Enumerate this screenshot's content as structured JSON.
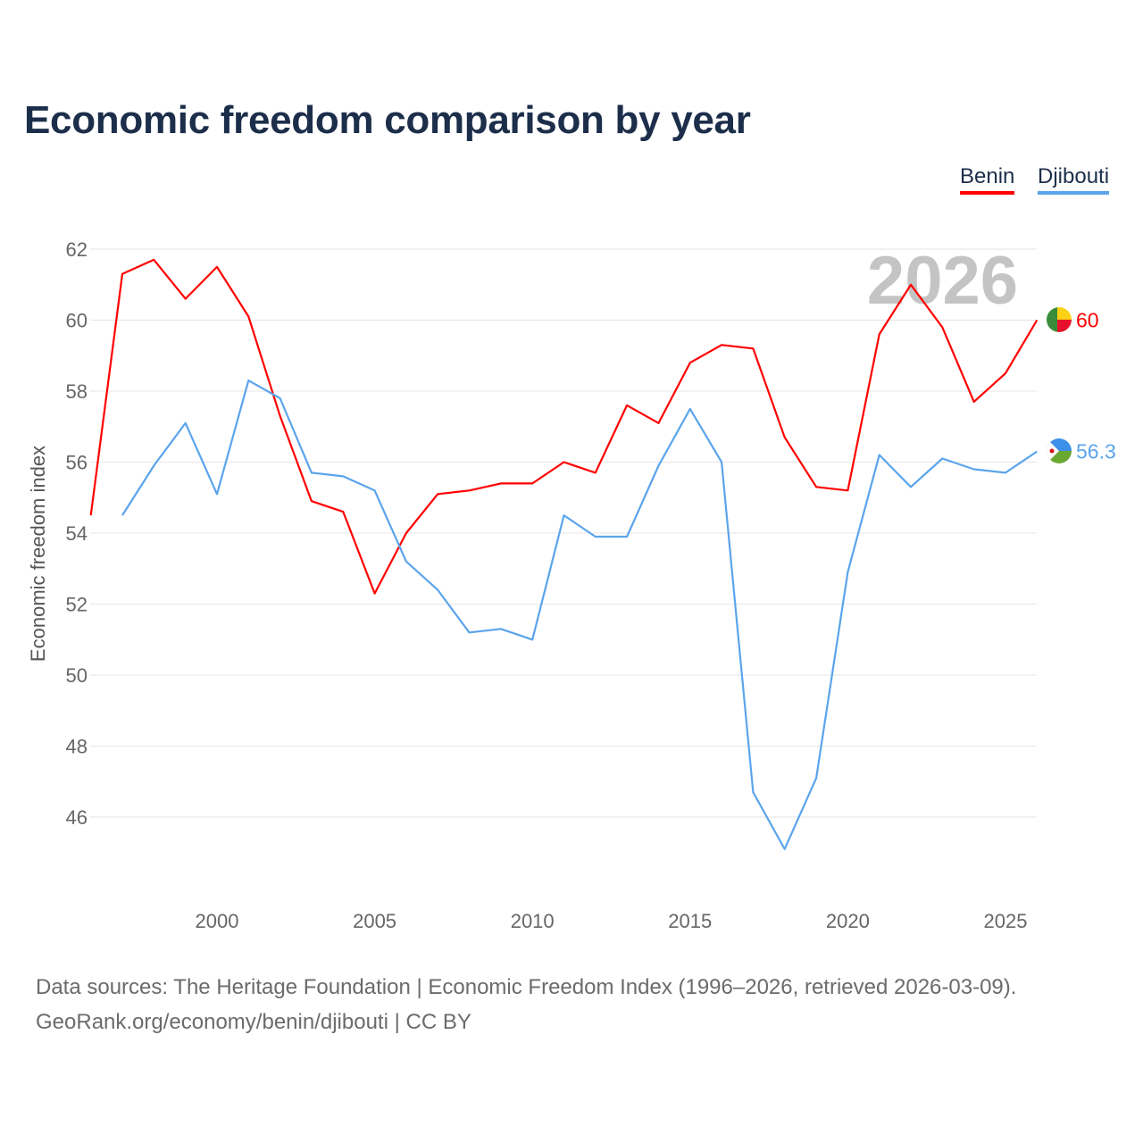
{
  "title": "Economic freedom comparison by year",
  "legend": [
    {
      "label": "Benin",
      "color": "#ff0000"
    },
    {
      "label": "Djibouti",
      "color": "#5ba4ec"
    }
  ],
  "footer": {
    "line1": "Data sources: The Heritage Foundation | Economic Freedom Index (1996–2026, retrieved 2026-03-09).",
    "line2": "GeoRank.org/economy/benin/djibouti | CC BY"
  },
  "chart_data": {
    "type": "line",
    "title": "Economic freedom comparison by year",
    "ylabel": "Economic freedom index",
    "xlabel": "",
    "xlim": [
      1996,
      2026
    ],
    "ylim": [
      44,
      63
    ],
    "xticks": [
      2000,
      2005,
      2010,
      2015,
      2020,
      2025
    ],
    "yticks": [
      46,
      48,
      50,
      52,
      54,
      56,
      58,
      60,
      62
    ],
    "grid": true,
    "legend_position": "top-right",
    "watermark_year": "2026",
    "series": [
      {
        "name": "Benin",
        "color": "#ff0000",
        "end_label": "60",
        "x": [
          1996,
          1997,
          1998,
          1999,
          2000,
          2001,
          2002,
          2003,
          2004,
          2005,
          2006,
          2007,
          2008,
          2009,
          2010,
          2011,
          2012,
          2013,
          2014,
          2015,
          2016,
          2017,
          2018,
          2019,
          2020,
          2021,
          2022,
          2023,
          2024,
          2025,
          2026
        ],
        "y": [
          54.5,
          61.3,
          61.7,
          60.6,
          61.5,
          60.1,
          57.3,
          54.9,
          54.6,
          52.3,
          54.0,
          55.1,
          55.2,
          55.4,
          55.4,
          56.0,
          55.7,
          57.6,
          57.1,
          58.8,
          59.3,
          59.2,
          56.7,
          55.3,
          55.2,
          59.6,
          61.0,
          59.8,
          57.7,
          58.5,
          60.0
        ]
      },
      {
        "name": "Djibouti",
        "color": "#5ba4ec",
        "end_label": "56.3",
        "x": [
          1997,
          1998,
          1999,
          2000,
          2001,
          2002,
          2003,
          2004,
          2005,
          2006,
          2007,
          2008,
          2009,
          2010,
          2011,
          2012,
          2013,
          2014,
          2015,
          2016,
          2017,
          2018,
          2019,
          2020,
          2021,
          2022,
          2023,
          2024,
          2025,
          2026
        ],
        "y": [
          54.5,
          55.9,
          57.1,
          55.1,
          58.3,
          57.8,
          55.7,
          55.6,
          55.2,
          53.2,
          52.4,
          51.2,
          51.3,
          51.0,
          54.5,
          53.9,
          53.9,
          55.9,
          57.5,
          56.0,
          46.7,
          45.1,
          47.1,
          52.9,
          56.2,
          55.3,
          56.1,
          55.8,
          55.7,
          56.3
        ]
      }
    ]
  }
}
